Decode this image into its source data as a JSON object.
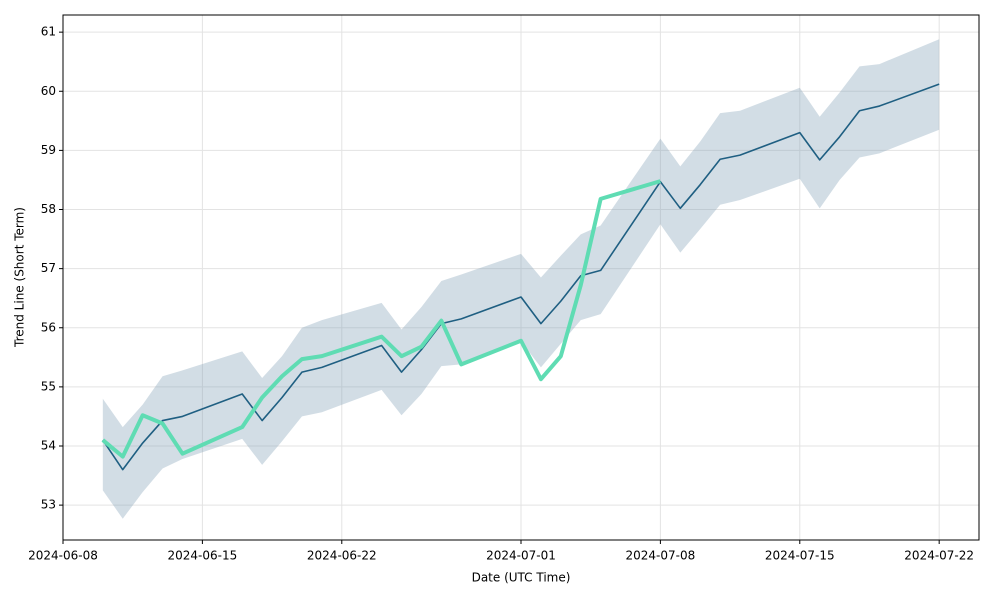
{
  "chart_data": {
    "type": "line",
    "x_label": "Date (UTC Time)",
    "y_label": "Trend Line (Short Term)",
    "x": [
      "2024-06-10",
      "2024-06-11",
      "2024-06-12",
      "2024-06-13",
      "2024-06-14",
      "2024-06-17",
      "2024-06-18",
      "2024-06-19",
      "2024-06-20",
      "2024-06-21",
      "2024-06-24",
      "2024-06-25",
      "2024-06-26",
      "2024-06-27",
      "2024-06-28",
      "2024-07-01",
      "2024-07-02",
      "2024-07-03",
      "2024-07-04",
      "2024-07-05",
      "2024-07-08",
      "2024-07-09",
      "2024-07-10",
      "2024-07-11",
      "2024-07-12",
      "2024-07-15",
      "2024-07-16",
      "2024-07-17",
      "2024-07-18",
      "2024-07-19",
      "2024-07-22"
    ],
    "band": {
      "color": "#7f9fb5",
      "upper": [
        54.8,
        54.32,
        54.7,
        55.18,
        55.28,
        55.6,
        55.15,
        55.52,
        56.0,
        56.13,
        56.42,
        55.97,
        56.35,
        56.79,
        56.9,
        57.25,
        56.85,
        57.22,
        57.58,
        57.73,
        59.2,
        58.73,
        59.15,
        59.63,
        59.67,
        60.06,
        59.57,
        59.98,
        60.42,
        60.46,
        60.88
      ],
      "lower": [
        53.25,
        52.77,
        53.22,
        53.62,
        53.78,
        54.12,
        53.68,
        54.08,
        54.5,
        54.57,
        54.95,
        54.52,
        54.88,
        55.35,
        55.38,
        55.77,
        55.33,
        55.73,
        56.13,
        56.23,
        57.75,
        57.27,
        57.67,
        58.08,
        58.16,
        58.52,
        58.02,
        58.5,
        58.88,
        58.95,
        59.35
      ]
    },
    "series": [
      {
        "color": "#1f5f82",
        "width": 1.6,
        "values": [
          54.1,
          53.6,
          54.05,
          54.43,
          54.5,
          54.88,
          54.43,
          54.82,
          55.25,
          55.33,
          55.7,
          55.25,
          55.63,
          56.07,
          56.15,
          56.52,
          56.07,
          56.45,
          56.88,
          56.97,
          58.47,
          58.02,
          58.42,
          58.85,
          58.92,
          59.3,
          58.84,
          59.23,
          59.67,
          59.75,
          60.12
        ]
      },
      {
        "color": "#5fdcb3",
        "width": 4,
        "values": [
          54.1,
          53.82,
          54.52,
          54.38,
          53.87,
          54.32,
          54.82,
          55.18,
          55.47,
          55.52,
          55.85,
          55.52,
          55.68,
          56.12,
          55.38,
          55.78,
          55.13,
          55.52,
          56.72,
          58.18,
          58.48,
          null,
          null,
          null,
          null,
          null,
          null,
          null,
          null,
          null,
          null
        ]
      }
    ],
    "xlim": [
      "2024-06-08",
      "2024-07-24"
    ],
    "xticks": [
      "2024-06-08",
      "2024-06-15",
      "2024-06-22",
      "2024-07-01",
      "2024-07-08",
      "2024-07-15",
      "2024-07-22"
    ],
    "ylim": [
      52.41,
      61.29
    ],
    "yticks": [
      53,
      54,
      55,
      56,
      57,
      58,
      59,
      60,
      61
    ],
    "grid": true
  }
}
